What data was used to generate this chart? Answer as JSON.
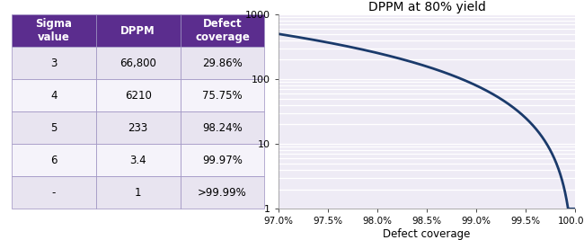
{
  "table": {
    "headers": [
      "Sigma\nvalue",
      "DPPM",
      "Defect\ncoverage"
    ],
    "rows": [
      [
        "3",
        "66,800",
        "29.86%"
      ],
      [
        "4",
        "6210",
        "75.75%"
      ],
      [
        "5",
        "233",
        "98.24%"
      ],
      [
        "6",
        "3.4",
        "99.97%"
      ],
      [
        "-",
        "1",
        ">99.99%"
      ]
    ],
    "header_bg": "#5b2d8e",
    "header_fg": "#ffffff",
    "row_bg_even": "#e8e4f0",
    "row_bg_odd": "#f5f3fa",
    "border_color": "#9b8fc0"
  },
  "plot": {
    "title": "DPPM at 80% yield",
    "xlabel": "Defect coverage",
    "ylim_log": [
      1,
      1000
    ],
    "yticks": [
      1,
      10,
      100,
      1000
    ],
    "xticks": [
      97.0,
      97.5,
      98.0,
      98.5,
      99.0,
      99.5,
      100.0
    ],
    "line_color": "#1a3a6b",
    "line_width": 2.0,
    "bg_color": "#eeebf5",
    "grid_color": "#ffffff",
    "title_fontsize": 10
  }
}
